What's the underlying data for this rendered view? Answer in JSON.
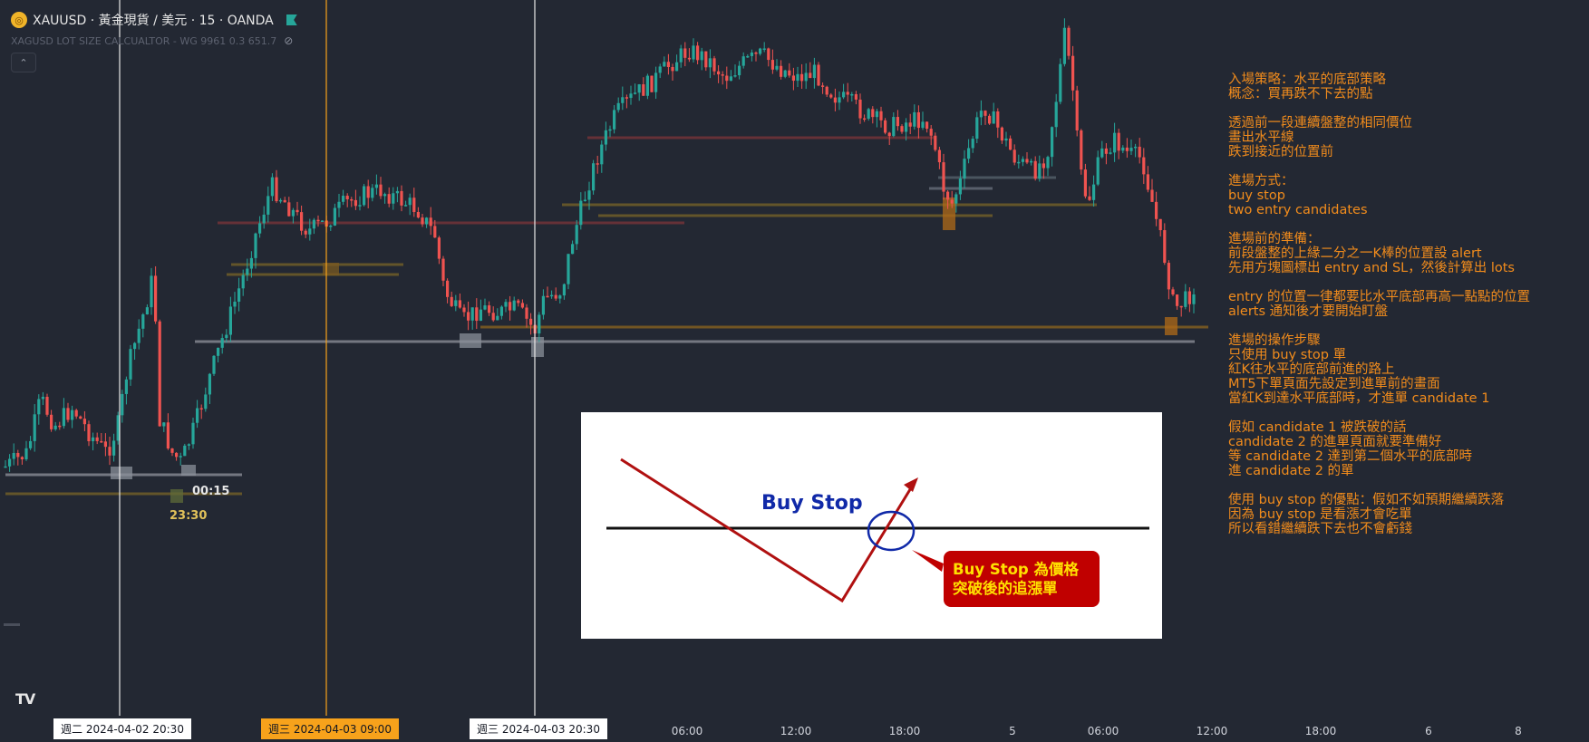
{
  "header": {
    "symbol_title": "XAUUSD · 黃金現貨 / 美元 · 15 · OANDA",
    "indicator_text": "XAGUSD LOT SIZE CALCUALTOR - WG 9961 0.3 651.7",
    "icons": [
      "gold-logo-icon",
      "flag-icon",
      "eye-off-icon",
      "chevron-up-icon"
    ],
    "collapse_label": "⌃"
  },
  "time_labels": {
    "label1": "00:15",
    "label2": "23:30"
  },
  "notes": "入場策略：水平的底部策略\n概念：買再跌不下去的點\n\n透過前一段連續盤整的相同價位\n畫出水平線\n跌到接近的位置前\n\n進場方式：\nbuy stop\ntwo entry candidates\n\n進場前的準備：\n前段盤整的上緣二分之一K棒的位置設 alert\n先用方塊圖標出 entry and SL，然後計算出 lots\n\nentry 的位置一律都要比水平底部再高一點點的位置\nalerts 通知後才要開始盯盤\n\n進場的操作步驟\n只使用 buy stop 單\n紅K往水平的底部前進的路上\nMT5下單頁面先設定到進單前的畫面\n當紅K到達水平底部時，才進單 candidate 1\n\n假如 candidate 1 被跌破的話\ncandidate 2 的進單頁面就要準備好\n等 candidate 2 達到第二個水平的底部時\n進 candidate 2 的單\n\n使用 buy stop 的優點：假如不如預期繼續跌落\n因為 buy stop 是看漲才會吃單\n所以看錯繼續跌下去也不會虧錢",
  "infobox": {
    "title": "Buy Stop",
    "callout_line1": "Buy Stop 為價格",
    "callout_line2": "突破後的追漲單"
  },
  "xaxis": {
    "ticks": [
      {
        "label": "06:00",
        "x": 758
      },
      {
        "label": "12:00",
        "x": 878
      },
      {
        "label": "18:00",
        "x": 998
      },
      {
        "label": "5",
        "x": 1117
      },
      {
        "label": "06:00",
        "x": 1217
      },
      {
        "label": "12:00",
        "x": 1337
      },
      {
        "label": "18:00",
        "x": 1457
      },
      {
        "label": "6",
        "x": 1576
      },
      {
        "label": "8",
        "x": 1675
      }
    ],
    "cursor_labels": [
      {
        "label": "週二 2024-04-02   20:30"
      },
      {
        "label": "週三 2024-04-03   09:00"
      },
      {
        "label": "週三 2024-04-03   20:30"
      }
    ]
  },
  "colors": {
    "background": "#232833",
    "up": "#26a69a",
    "down": "#ef5350",
    "notes": "#f28c1c",
    "orange_cursor": "#f7a21b"
  },
  "watermark": "TV"
}
